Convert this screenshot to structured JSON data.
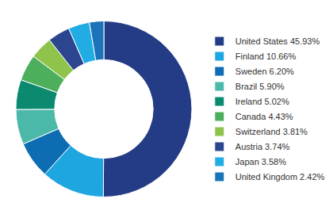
{
  "chart_data": {
    "type": "pie",
    "categories": [
      "United States 45.93%",
      "Finland 10.66%",
      "Sweden 6.20%",
      "Brazil 5.90%",
      "Ireland 5.02%",
      "Canada 4.43%",
      "Switzerland 3.81%",
      "Austria 3.74%",
      "Japan 3.58%",
      "United Kingdom 2.42%"
    ],
    "values": [
      45.93,
      10.66,
      6.2,
      5.9,
      5.02,
      4.43,
      3.81,
      3.74,
      3.58,
      2.42
    ],
    "colors": [
      "#243c86",
      "#1da6df",
      "#0e6cb3",
      "#4cb8aa",
      "#0b8a70",
      "#4daf5b",
      "#8ec44b",
      "#2b468f",
      "#21ade4",
      "#1b74b8"
    ],
    "legend": "right",
    "data_labels": false
  }
}
